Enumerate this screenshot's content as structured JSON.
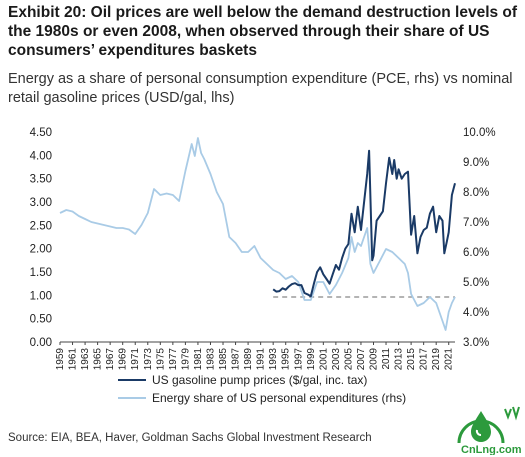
{
  "title": "Exhibit 20: Oil prices are well below the demand destruction levels of the 1980s or even 2008, when observed through their share of US consumers’ expenditures baskets",
  "subtitle": "Energy as a share of personal consumption expenditure (PCE, rhs) vs nominal retail gasoline prices (USD/gal, lhs)",
  "source": "Source: EIA, BEA, Haver, Goldman Sachs Global Investment Research",
  "logo": {
    "text": "CnLng.com",
    "icon": "lng-droplet-logo-icon",
    "color": "#2c9a3c"
  },
  "chart_data": {
    "type": "line",
    "x_range": [
      1959,
      2022
    ],
    "x_ticks": [
      "1959",
      "1961",
      "1963",
      "1965",
      "1967",
      "1969",
      "1971",
      "1973",
      "1975",
      "1977",
      "1979",
      "1981",
      "1983",
      "1985",
      "1987",
      "1989",
      "1991",
      "1993",
      "1995",
      "1997",
      "1999",
      "2001",
      "2003",
      "2005",
      "2007",
      "2009",
      "2011",
      "2013",
      "2015",
      "2017",
      "2019",
      "2021"
    ],
    "y_left": {
      "min": 0,
      "max": 4.5,
      "ticks": [
        "0.00",
        "0.50",
        "1.00",
        "1.50",
        "2.00",
        "2.50",
        "3.00",
        "3.50",
        "4.00",
        "4.50"
      ]
    },
    "y_right": {
      "min": 3.0,
      "max": 10.0,
      "ticks": [
        "3.0%",
        "4.0%",
        "5.0%",
        "6.0%",
        "7.0%",
        "8.0%",
        "9.0%",
        "10.0%"
      ]
    },
    "reference_line": {
      "axis": "right",
      "value": 4.5,
      "from": 1993,
      "to": 2022,
      "style": "dashed"
    },
    "series": [
      {
        "name": "US gasoline pump prices ($/gal, inc. tax)",
        "axis": "left",
        "color": "#1a3a66",
        "points": [
          [
            1993,
            1.13
          ],
          [
            1993.5,
            1.08
          ],
          [
            1994,
            1.09
          ],
          [
            1994.5,
            1.15
          ],
          [
            1995,
            1.12
          ],
          [
            1995.5,
            1.19
          ],
          [
            1996,
            1.24
          ],
          [
            1996.5,
            1.26
          ],
          [
            1997,
            1.22
          ],
          [
            1997.5,
            1.22
          ],
          [
            1998,
            1.05
          ],
          [
            1998.5,
            1.02
          ],
          [
            1999,
            0.98
          ],
          [
            1999.5,
            1.25
          ],
          [
            2000,
            1.5
          ],
          [
            2000.5,
            1.6
          ],
          [
            2001,
            1.45
          ],
          [
            2001.5,
            1.35
          ],
          [
            2002,
            1.25
          ],
          [
            2002.5,
            1.45
          ],
          [
            2003,
            1.65
          ],
          [
            2003.5,
            1.55
          ],
          [
            2004,
            1.8
          ],
          [
            2004.5,
            2.0
          ],
          [
            2005,
            2.1
          ],
          [
            2005.5,
            2.75
          ],
          [
            2006,
            2.35
          ],
          [
            2006.5,
            2.9
          ],
          [
            2007,
            2.4
          ],
          [
            2007.5,
            3.0
          ],
          [
            2008,
            3.6
          ],
          [
            2008.3,
            4.1
          ],
          [
            2008.8,
            1.75
          ],
          [
            2009,
            1.85
          ],
          [
            2009.5,
            2.6
          ],
          [
            2010,
            2.7
          ],
          [
            2010.5,
            2.8
          ],
          [
            2011,
            3.4
          ],
          [
            2011.5,
            3.95
          ],
          [
            2012,
            3.6
          ],
          [
            2012.3,
            3.9
          ],
          [
            2012.7,
            3.5
          ],
          [
            2013,
            3.7
          ],
          [
            2013.5,
            3.5
          ],
          [
            2014,
            3.6
          ],
          [
            2014.5,
            3.65
          ],
          [
            2015,
            2.3
          ],
          [
            2015.5,
            2.7
          ],
          [
            2016,
            1.9
          ],
          [
            2016.5,
            2.25
          ],
          [
            2017,
            2.4
          ],
          [
            2017.5,
            2.45
          ],
          [
            2018,
            2.75
          ],
          [
            2018.5,
            2.9
          ],
          [
            2019,
            2.35
          ],
          [
            2019.5,
            2.7
          ],
          [
            2020,
            2.6
          ],
          [
            2020.3,
            1.9
          ],
          [
            2020.7,
            2.15
          ],
          [
            2021,
            2.35
          ],
          [
            2021.5,
            3.15
          ],
          [
            2022,
            3.4
          ]
        ]
      },
      {
        "name": "Energy share of US personal expenditures (rhs)",
        "axis": "right",
        "color": "#a9cbe6",
        "points": [
          [
            1959,
            7.3
          ],
          [
            1960,
            7.4
          ],
          [
            1961,
            7.35
          ],
          [
            1962,
            7.2
          ],
          [
            1963,
            7.1
          ],
          [
            1964,
            7.0
          ],
          [
            1965,
            6.95
          ],
          [
            1966,
            6.9
          ],
          [
            1967,
            6.85
          ],
          [
            1968,
            6.8
          ],
          [
            1969,
            6.8
          ],
          [
            1970,
            6.75
          ],
          [
            1971,
            6.6
          ],
          [
            1972,
            6.9
          ],
          [
            1973,
            7.3
          ],
          [
            1974,
            8.1
          ],
          [
            1975,
            7.9
          ],
          [
            1976,
            7.95
          ],
          [
            1977,
            7.9
          ],
          [
            1978,
            7.7
          ],
          [
            1979,
            8.7
          ],
          [
            1980,
            9.6
          ],
          [
            1980.5,
            9.2
          ],
          [
            1981,
            9.8
          ],
          [
            1981.5,
            9.3
          ],
          [
            1982,
            9.1
          ],
          [
            1983,
            8.6
          ],
          [
            1984,
            8.0
          ],
          [
            1985,
            7.6
          ],
          [
            1986,
            6.5
          ],
          [
            1987,
            6.3
          ],
          [
            1988,
            6.0
          ],
          [
            1989,
            6.0
          ],
          [
            1990,
            6.2
          ],
          [
            1991,
            5.8
          ],
          [
            1992,
            5.6
          ],
          [
            1993,
            5.4
          ],
          [
            1994,
            5.3
          ],
          [
            1995,
            5.1
          ],
          [
            1996,
            5.2
          ],
          [
            1997,
            5.0
          ],
          [
            1998,
            4.4
          ],
          [
            1999,
            4.4
          ],
          [
            2000,
            5.0
          ],
          [
            2001,
            5.0
          ],
          [
            2002,
            4.6
          ],
          [
            2003,
            4.9
          ],
          [
            2004,
            5.3
          ],
          [
            2005,
            5.8
          ],
          [
            2005.5,
            6.5
          ],
          [
            2006,
            6.0
          ],
          [
            2006.5,
            6.3
          ],
          [
            2007,
            6.2
          ],
          [
            2008,
            6.8
          ],
          [
            2008.5,
            5.6
          ],
          [
            2009,
            5.3
          ],
          [
            2010,
            5.7
          ],
          [
            2011,
            6.1
          ],
          [
            2012,
            6.0
          ],
          [
            2013,
            5.8
          ],
          [
            2014,
            5.6
          ],
          [
            2014.5,
            5.3
          ],
          [
            2015,
            4.6
          ],
          [
            2016,
            4.2
          ],
          [
            2017,
            4.3
          ],
          [
            2018,
            4.5
          ],
          [
            2019,
            4.3
          ],
          [
            2020,
            3.7
          ],
          [
            2020.5,
            3.4
          ],
          [
            2021,
            4.0
          ],
          [
            2021.5,
            4.3
          ],
          [
            2022,
            4.5
          ]
        ]
      }
    ]
  }
}
